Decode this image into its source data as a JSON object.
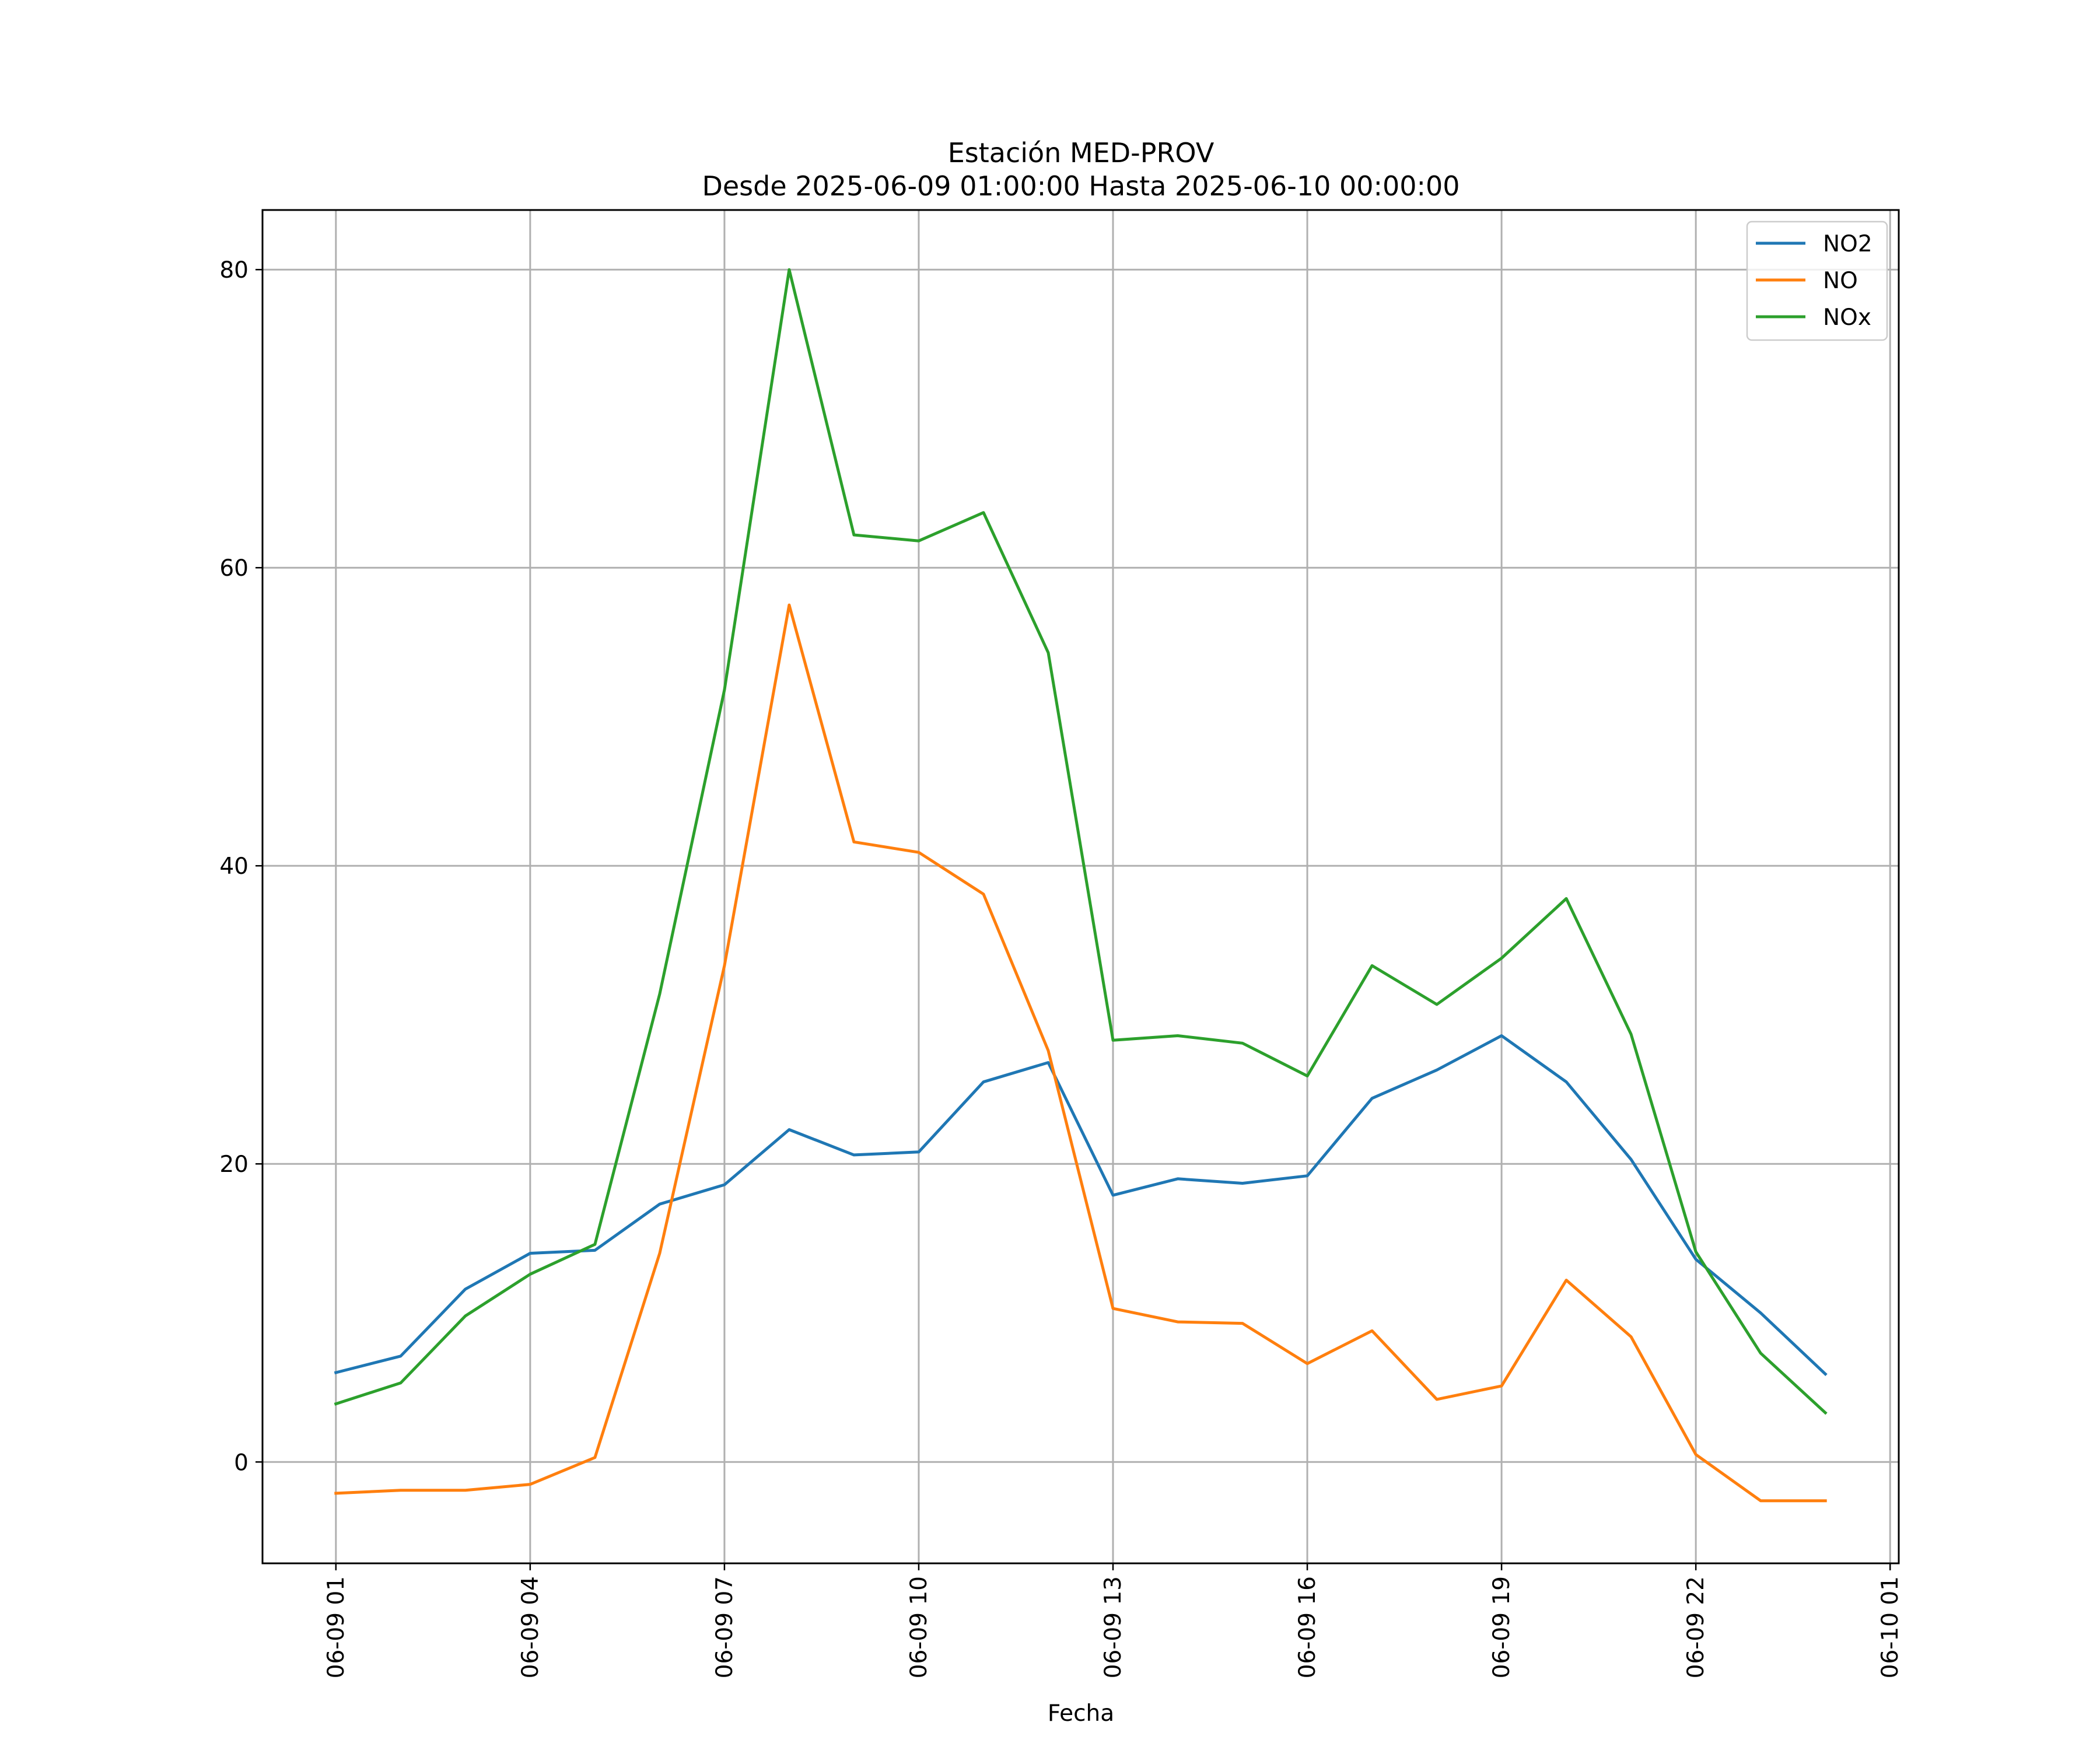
{
  "chart_data": {
    "type": "line",
    "title": "Estación MED-PROV",
    "subtitle": "Desde 2025-06-09 01:00:00 Hasta 2025-06-10 00:00:00",
    "xlabel": "Fecha",
    "ylabel": "",
    "x": [
      "2025-06-09 01:00",
      "2025-06-09 02:00",
      "2025-06-09 03:00",
      "2025-06-09 04:00",
      "2025-06-09 05:00",
      "2025-06-09 06:00",
      "2025-06-09 07:00",
      "2025-06-09 08:00",
      "2025-06-09 09:00",
      "2025-06-09 10:00",
      "2025-06-09 11:00",
      "2025-06-09 12:00",
      "2025-06-09 13:00",
      "2025-06-09 14:00",
      "2025-06-09 15:00",
      "2025-06-09 16:00",
      "2025-06-09 17:00",
      "2025-06-09 18:00",
      "2025-06-09 19:00",
      "2025-06-09 20:00",
      "2025-06-09 21:00",
      "2025-06-09 22:00",
      "2025-06-09 23:00",
      "2025-06-10 00:00"
    ],
    "xticks": [
      "06-09 01",
      "06-09 04",
      "06-09 07",
      "06-09 10",
      "06-09 13",
      "06-09 16",
      "06-09 19",
      "06-09 22",
      "06-10 01"
    ],
    "xlim": [
      "2025-06-08 23:52",
      "2025-06-10 01:08"
    ],
    "yticks": [
      "0",
      "20",
      "40",
      "60",
      "80"
    ],
    "ylim": [
      -6.8,
      84
    ],
    "grid": true,
    "legend_position": "top-right",
    "series": [
      {
        "name": "NO2",
        "color": "#1f77b4",
        "values": [
          6.0,
          7.1,
          11.6,
          14.0,
          14.2,
          17.3,
          18.6,
          22.3,
          20.6,
          20.8,
          25.5,
          26.8,
          17.9,
          19.0,
          18.7,
          19.2,
          24.4,
          26.3,
          28.6,
          25.5,
          20.3,
          13.6,
          10.0,
          5.9
        ]
      },
      {
        "name": "NO",
        "color": "#ff7f0e",
        "values": [
          -2.1,
          -1.9,
          -1.9,
          -1.5,
          0.3,
          14.0,
          33.3,
          57.5,
          41.6,
          40.9,
          38.1,
          27.6,
          10.3,
          9.4,
          9.3,
          6.6,
          8.8,
          4.2,
          5.1,
          12.2,
          8.4,
          0.5,
          -2.6,
          -2.6
        ]
      },
      {
        "name": "NOx",
        "color": "#2ca02c",
        "values": [
          3.9,
          5.3,
          9.8,
          12.6,
          14.6,
          31.4,
          51.8,
          80.0,
          62.2,
          61.8,
          63.7,
          54.3,
          28.3,
          28.6,
          28.1,
          25.9,
          33.3,
          30.7,
          33.8,
          37.8,
          28.7,
          14.1,
          7.3,
          3.3
        ]
      }
    ]
  }
}
